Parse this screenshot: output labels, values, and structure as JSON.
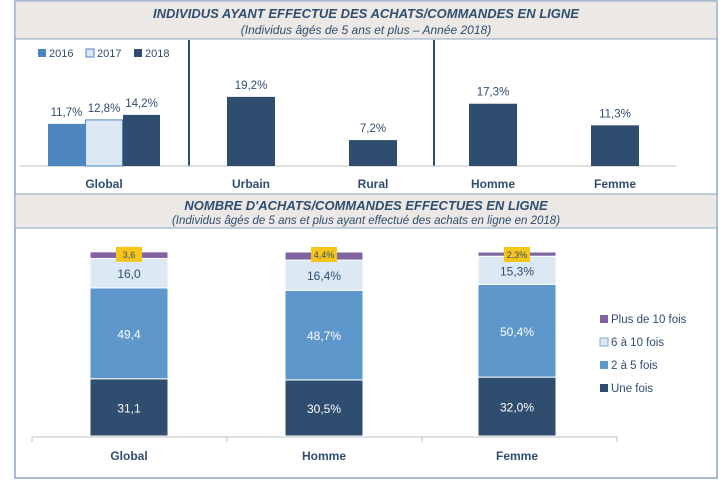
{
  "chart_data": [
    {
      "type": "bar",
      "title": "INDIVIDUS AYANT EFFECTUE DES ACHATS/COMMANDES EN LIGNE",
      "subtitle": "(Individus âgés de 5 ans et plus – Année 2018)",
      "legend_position": "top-left",
      "grid": false,
      "ylim": [
        0,
        25
      ],
      "global": {
        "category": "Global",
        "series": [
          {
            "name": "2016",
            "value": 11.7,
            "label": "11,7%",
            "color": "#4f86c0"
          },
          {
            "name": "2017",
            "value": 12.8,
            "label": "12,8%",
            "color": "#dce9f5"
          },
          {
            "name": "2018",
            "value": 14.2,
            "label": "14,2%",
            "color": "#2f4e6f"
          }
        ]
      },
      "categories": [
        "Urbain",
        "Rural",
        "Homme",
        "Femme"
      ],
      "values": [
        19.2,
        7.2,
        17.3,
        11.3
      ],
      "labels": [
        "19,2%",
        "7,2%",
        "17,3%",
        "11,3%"
      ],
      "bar_color": "#2f4e6f"
    },
    {
      "type": "bar",
      "stacked": true,
      "title": "NOMBRE D'ACHATS/COMMANDES EFFECTUES EN LIGNE",
      "subtitle": "(Individus âgés de 5 ans et plus ayant effectué des achats en ligne en 2018)",
      "legend_position": "right",
      "grid": false,
      "ylim": [
        0,
        100
      ],
      "categories": [
        "Global",
        "Homme",
        "Femme"
      ],
      "series": [
        {
          "name": "Une fois",
          "values": [
            31.1,
            30.5,
            32.0
          ],
          "labels": [
            "31,1",
            "30,5%",
            "32,0%"
          ],
          "color": "#2f4e6f"
        },
        {
          "name": "2 à 5 fois",
          "values": [
            49.4,
            48.7,
            50.4
          ],
          "labels": [
            "49,4",
            "48,7%",
            "50,4%"
          ],
          "color": "#5e97cc"
        },
        {
          "name": "6 à 10 fois",
          "values": [
            16.0,
            16.4,
            15.3
          ],
          "labels": [
            "16,0",
            "16,4%",
            "15,3%"
          ],
          "color": "#dce9f5"
        },
        {
          "name": "Plus de 10 fois",
          "values": [
            3.6,
            4.4,
            2.3
          ],
          "labels": [
            "3,6",
            "4,4%",
            "2,3%"
          ],
          "color": "#8064a2"
        }
      ],
      "highlight_label_color": "#f7c41a"
    }
  ]
}
